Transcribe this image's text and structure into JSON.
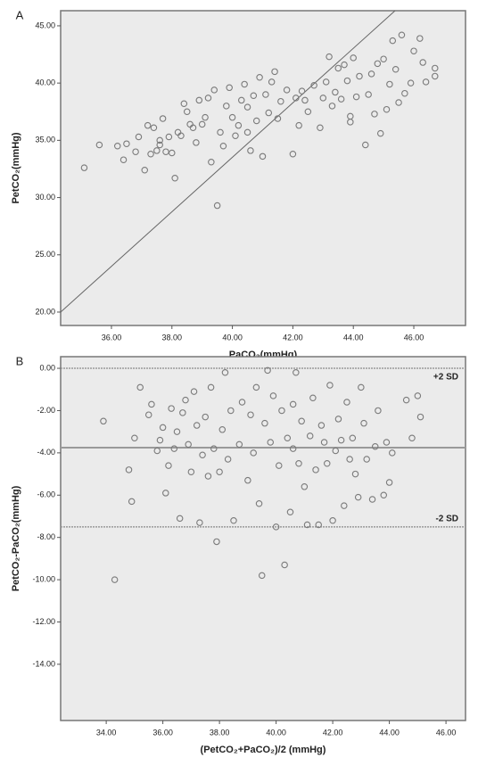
{
  "chart_data": [
    {
      "type": "scatter",
      "panel_label": "A",
      "x_label": "PaCO₂(mmHg)",
      "y_label": "PetCO₂(mmHg)",
      "color": "#7a7a7a",
      "xlim": [
        34.32,
        47.71
      ],
      "ylim": [
        18.83,
        46.32
      ],
      "xticks": [
        {
          "value": 36,
          "label": "36.00"
        },
        {
          "value": 38,
          "label": "38.00"
        },
        {
          "value": 40,
          "label": "40.00"
        },
        {
          "value": 42,
          "label": "42.00"
        },
        {
          "value": 44,
          "label": "44.00"
        },
        {
          "value": 46,
          "label": "46.00"
        }
      ],
      "yticks": [
        {
          "value": 20,
          "label": "20.00"
        },
        {
          "value": 25,
          "label": "25.00"
        },
        {
          "value": 30,
          "label": "30.00"
        },
        {
          "value": 35,
          "label": "35.00"
        },
        {
          "value": 40,
          "label": "40.00"
        },
        {
          "value": 45,
          "label": "45.00"
        }
      ],
      "reference_line": {
        "x": [
          34.32,
          45.38
        ],
        "y": [
          20,
          46.32
        ]
      },
      "x": [
        35.1,
        35.6,
        36.2,
        36.4,
        36.5,
        36.8,
        36.9,
        37.1,
        37.2,
        37.3,
        37.4,
        37.5,
        37.6,
        37.7,
        37.8,
        37.9,
        38.0,
        38.1,
        38.2,
        38.3,
        38.4,
        38.5,
        38.6,
        38.7,
        38.8,
        39.0,
        39.1,
        39.2,
        39.3,
        39.4,
        39.5,
        39.6,
        39.7,
        39.8,
        39.9,
        40.0,
        40.1,
        40.2,
        40.3,
        40.4,
        40.5,
        40.6,
        40.7,
        40.8,
        40.9,
        41.0,
        41.1,
        41.2,
        41.3,
        41.4,
        41.5,
        41.6,
        41.8,
        42.0,
        42.1,
        42.2,
        42.3,
        42.5,
        42.7,
        42.9,
        43.0,
        43.1,
        43.2,
        43.3,
        43.4,
        43.5,
        43.6,
        43.7,
        43.8,
        43.9,
        44.0,
        44.1,
        44.2,
        44.4,
        44.5,
        44.6,
        44.7,
        44.8,
        44.9,
        45.0,
        45.1,
        45.2,
        45.3,
        45.4,
        45.5,
        45.6,
        45.7,
        45.9,
        46.0,
        46.2,
        46.3,
        46.4,
        46.7,
        46.7,
        37.6,
        38.9,
        40.5,
        42.4,
        43.9
      ],
      "y": [
        32.6,
        34.6,
        34.5,
        33.3,
        34.7,
        34.0,
        35.3,
        32.4,
        36.3,
        33.8,
        36.1,
        34.1,
        34.6,
        36.9,
        34.0,
        35.3,
        33.9,
        31.7,
        35.7,
        35.4,
        38.2,
        37.5,
        36.4,
        36.1,
        34.8,
        36.4,
        37.0,
        38.7,
        33.1,
        39.4,
        29.3,
        35.7,
        34.5,
        38.0,
        39.6,
        37.0,
        35.4,
        36.3,
        38.5,
        39.9,
        35.7,
        34.1,
        38.9,
        36.7,
        40.5,
        33.6,
        39.0,
        37.4,
        40.1,
        41.0,
        36.9,
        38.4,
        39.4,
        33.8,
        38.7,
        36.3,
        39.3,
        37.5,
        39.8,
        36.1,
        38.7,
        40.1,
        42.3,
        38.0,
        39.2,
        41.3,
        38.6,
        41.6,
        40.2,
        37.1,
        42.2,
        38.8,
        40.6,
        34.6,
        39.0,
        40.8,
        37.3,
        41.7,
        35.6,
        42.1,
        37.7,
        39.9,
        43.7,
        41.2,
        38.3,
        44.2,
        39.1,
        40.0,
        42.8,
        43.9,
        41.8,
        40.1,
        41.3,
        40.6,
        35.0,
        38.5,
        37.9,
        38.5,
        36.6
      ]
    },
    {
      "type": "scatter",
      "panel_label": "B",
      "x_label": "(PetCO₂+PaCO₂)/2 (mmHg)",
      "y_label": "PetCO₂-PaCO₂(mmHg)",
      "color": "#7a7a7a",
      "xlim": [
        32.39,
        46.69
      ],
      "ylim": [
        -16.66,
        0.55
      ],
      "xticks": [
        {
          "value": 34,
          "label": "34.00"
        },
        {
          "value": 36,
          "label": "36.00"
        },
        {
          "value": 38,
          "label": "38.00"
        },
        {
          "value": 40,
          "label": "40.00"
        },
        {
          "value": 42,
          "label": "42.00"
        },
        {
          "value": 44,
          "label": "44.00"
        },
        {
          "value": 46,
          "label": "46.00"
        }
      ],
      "yticks": [
        {
          "value": 0,
          "label": "0.00"
        },
        {
          "value": -2,
          "label": "-2.00"
        },
        {
          "value": -4,
          "label": "-4.00"
        },
        {
          "value": -6,
          "label": "-6.00"
        },
        {
          "value": -8,
          "label": "-8.00"
        },
        {
          "value": -10,
          "label": "-10.00"
        },
        {
          "value": -12,
          "label": "-12.00"
        },
        {
          "value": -14,
          "label": "-14.00"
        }
      ],
      "hlines": [
        {
          "value": 0.0,
          "label": "+2 SD"
        },
        {
          "value": -3.75
        },
        {
          "value": -7.5,
          "label": "-2 SD"
        }
      ],
      "x": [
        33.9,
        34.3,
        34.8,
        34.9,
        35.0,
        35.2,
        35.5,
        35.6,
        35.8,
        35.9,
        36.0,
        36.1,
        36.2,
        36.3,
        36.5,
        36.6,
        36.7,
        36.8,
        36.9,
        37.0,
        37.1,
        37.2,
        37.3,
        37.4,
        37.5,
        37.6,
        37.7,
        37.8,
        37.9,
        38.0,
        38.1,
        38.2,
        38.3,
        38.5,
        38.7,
        38.8,
        39.0,
        39.1,
        39.2,
        39.3,
        39.4,
        39.5,
        39.6,
        39.7,
        39.8,
        39.9,
        40.0,
        40.1,
        40.2,
        40.3,
        40.4,
        40.5,
        40.6,
        40.7,
        40.8,
        40.9,
        41.0,
        41.1,
        41.2,
        41.3,
        41.4,
        41.5,
        41.6,
        41.7,
        41.8,
        41.9,
        42.0,
        42.1,
        42.2,
        42.4,
        42.5,
        42.6,
        42.7,
        42.8,
        42.9,
        43.0,
        43.1,
        43.2,
        43.4,
        43.5,
        43.6,
        43.8,
        43.9,
        44.0,
        44.1,
        44.6,
        44.8,
        45.0,
        45.1,
        36.4,
        38.4,
        40.6,
        42.3
      ],
      "y": [
        -2.5,
        -10.0,
        -4.8,
        -6.3,
        -3.3,
        -0.9,
        -2.2,
        -1.7,
        -3.9,
        -3.4,
        -2.8,
        -5.9,
        -4.6,
        -1.9,
        -3.0,
        -7.1,
        -2.1,
        -1.5,
        -3.6,
        -4.9,
        -1.1,
        -2.7,
        -7.3,
        -4.1,
        -2.3,
        -5.1,
        -0.9,
        -3.8,
        -8.2,
        -4.9,
        -2.9,
        -0.2,
        -4.3,
        -7.2,
        -3.6,
        -1.6,
        -5.3,
        -2.2,
        -4.0,
        -0.9,
        -6.4,
        -9.8,
        -2.6,
        -0.1,
        -3.5,
        -1.3,
        -7.5,
        -4.6,
        -2.0,
        -9.3,
        -3.3,
        -6.8,
        -1.7,
        -0.2,
        -4.5,
        -2.5,
        -5.6,
        -7.4,
        -3.2,
        -1.4,
        -4.8,
        -7.4,
        -2.7,
        -3.5,
        -4.5,
        -0.8,
        -7.2,
        -3.9,
        -2.4,
        -6.5,
        -1.6,
        -4.3,
        -3.3,
        -5.0,
        -6.1,
        -0.9,
        -2.6,
        -4.3,
        -6.2,
        -3.7,
        -2.0,
        -6.0,
        -3.5,
        -5.4,
        -4.0,
        -1.5,
        -3.3,
        -1.3,
        -2.3,
        -3.8,
        -2.0,
        -3.8,
        -3.4
      ]
    }
  ]
}
